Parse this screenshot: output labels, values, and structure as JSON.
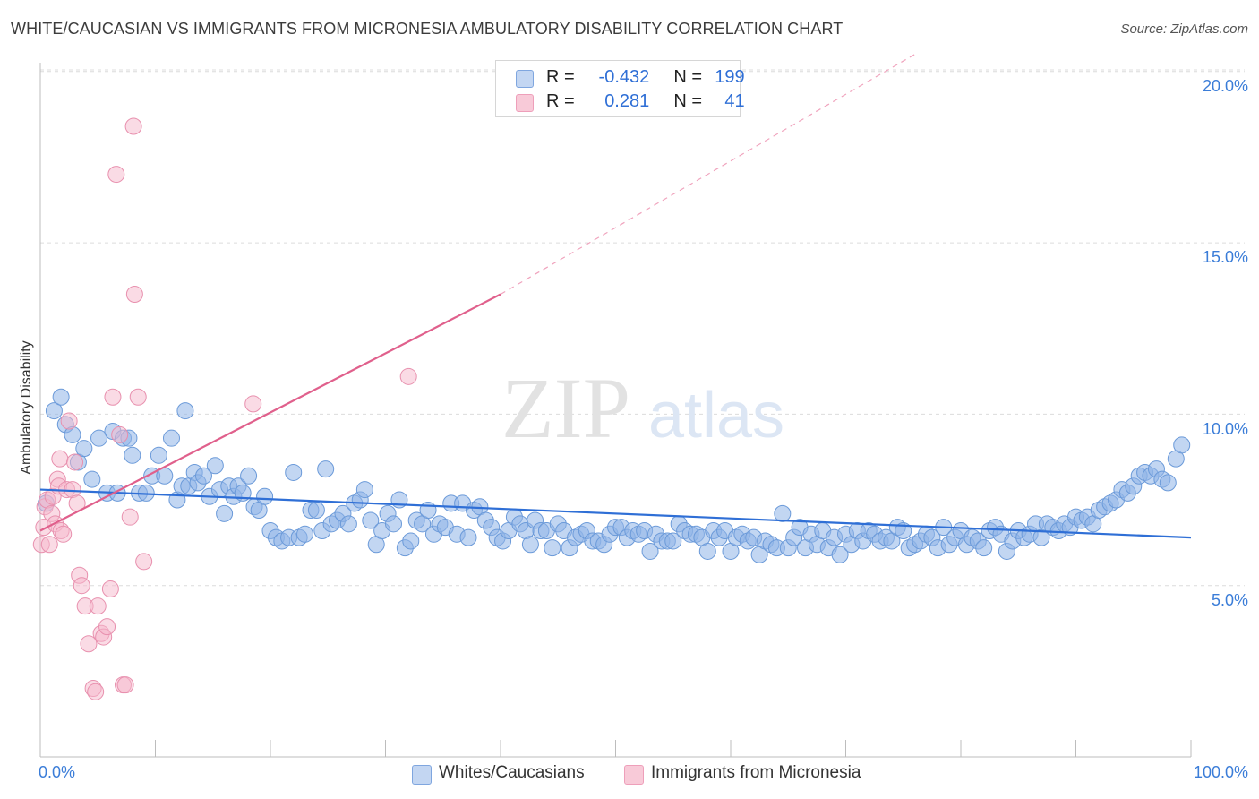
{
  "chart_data": {
    "type": "scatter",
    "title": "WHITE/CAUCASIAN VS IMMIGRANTS FROM MICRONESIA AMBULATORY DISABILITY CORRELATION CHART",
    "source": "Source: ZipAtlas.com",
    "ylabel": "Ambulatory Disability",
    "xlabel": "",
    "xlim": [
      0,
      100
    ],
    "ylim": [
      0,
      20.5
    ],
    "x_tick_labels": [
      "0.0%",
      "100.0%"
    ],
    "y_ticks": [
      5,
      10,
      15,
      20
    ],
    "y_tick_labels": [
      "5.0%",
      "10.0%",
      "15.0%",
      "20.0%"
    ],
    "watermark": {
      "part1": "ZIP",
      "part2": "atlas"
    },
    "legend": {
      "position": "top-center",
      "entries": [
        {
          "r_label": "R =",
          "r_value": "-0.432",
          "n_label": "N =",
          "n_value": "199"
        },
        {
          "r_label": "R =",
          "r_value": "0.281",
          "n_label": "N =",
          "n_value": "41"
        }
      ]
    },
    "series": [
      {
        "name": "Whites/Caucasians",
        "color": "#8fb4e8",
        "edge": "#6b9ad9",
        "trend": {
          "x": [
            0,
            100
          ],
          "y": [
            7.8,
            6.4
          ],
          "color": "#2f6fd6"
        },
        "points": [
          [
            0.5,
            7.4
          ],
          [
            1.2,
            10.1
          ],
          [
            1.8,
            10.5
          ],
          [
            2.2,
            9.7
          ],
          [
            2.8,
            9.4
          ],
          [
            3.3,
            8.6
          ],
          [
            3.8,
            9.0
          ],
          [
            4.5,
            8.1
          ],
          [
            5.1,
            9.3
          ],
          [
            5.8,
            7.7
          ],
          [
            6.3,
            9.5
          ],
          [
            6.7,
            7.7
          ],
          [
            7.2,
            9.3
          ],
          [
            7.7,
            9.3
          ],
          [
            8.0,
            8.8
          ],
          [
            8.6,
            7.7
          ],
          [
            9.2,
            7.7
          ],
          [
            9.7,
            8.2
          ],
          [
            10.3,
            8.8
          ],
          [
            10.8,
            8.2
          ],
          [
            11.4,
            9.3
          ],
          [
            11.9,
            7.5
          ],
          [
            12.3,
            7.9
          ],
          [
            12.6,
            10.1
          ],
          [
            12.9,
            7.9
          ],
          [
            13.4,
            8.3
          ],
          [
            13.7,
            8.0
          ],
          [
            14.2,
            8.2
          ],
          [
            14.7,
            7.6
          ],
          [
            15.2,
            8.5
          ],
          [
            15.6,
            7.8
          ],
          [
            16.0,
            7.1
          ],
          [
            16.4,
            7.9
          ],
          [
            16.8,
            7.6
          ],
          [
            17.2,
            7.9
          ],
          [
            17.6,
            7.7
          ],
          [
            18.1,
            8.2
          ],
          [
            18.6,
            7.3
          ],
          [
            19.0,
            7.2
          ],
          [
            19.5,
            7.6
          ],
          [
            20.0,
            6.6
          ],
          [
            20.5,
            6.4
          ],
          [
            21.0,
            6.3
          ],
          [
            21.6,
            6.4
          ],
          [
            22.0,
            8.3
          ],
          [
            22.5,
            6.4
          ],
          [
            23.0,
            6.5
          ],
          [
            23.5,
            7.2
          ],
          [
            24.0,
            7.2
          ],
          [
            24.5,
            6.6
          ],
          [
            24.8,
            8.4
          ],
          [
            25.3,
            6.8
          ],
          [
            25.8,
            6.9
          ],
          [
            26.3,
            7.1
          ],
          [
            26.8,
            6.8
          ],
          [
            27.3,
            7.4
          ],
          [
            27.8,
            7.5
          ],
          [
            28.2,
            7.8
          ],
          [
            28.7,
            6.9
          ],
          [
            29.2,
            6.2
          ],
          [
            29.7,
            6.6
          ],
          [
            30.2,
            7.1
          ],
          [
            30.7,
            6.8
          ],
          [
            31.2,
            7.5
          ],
          [
            31.7,
            6.1
          ],
          [
            32.2,
            6.3
          ],
          [
            32.7,
            6.9
          ],
          [
            33.2,
            6.8
          ],
          [
            33.7,
            7.2
          ],
          [
            34.2,
            6.5
          ],
          [
            34.7,
            6.8
          ],
          [
            35.2,
            6.7
          ],
          [
            35.7,
            7.4
          ],
          [
            36.2,
            6.5
          ],
          [
            36.7,
            7.4
          ],
          [
            37.2,
            6.4
          ],
          [
            37.7,
            7.2
          ],
          [
            38.2,
            7.3
          ],
          [
            38.7,
            6.9
          ],
          [
            39.2,
            6.7
          ],
          [
            39.7,
            6.4
          ],
          [
            40.2,
            6.3
          ],
          [
            40.7,
            6.6
          ],
          [
            41.2,
            7.0
          ],
          [
            41.7,
            6.8
          ],
          [
            42.2,
            6.6
          ],
          [
            42.6,
            6.2
          ],
          [
            43.0,
            6.9
          ],
          [
            43.5,
            6.6
          ],
          [
            44.0,
            6.6
          ],
          [
            44.5,
            6.1
          ],
          [
            45.0,
            6.8
          ],
          [
            45.5,
            6.6
          ],
          [
            46.0,
            6.1
          ],
          [
            46.5,
            6.4
          ],
          [
            47.0,
            6.5
          ],
          [
            47.5,
            6.6
          ],
          [
            48.0,
            6.3
          ],
          [
            48.5,
            6.3
          ],
          [
            49.0,
            6.2
          ],
          [
            49.5,
            6.5
          ],
          [
            50.0,
            6.7
          ],
          [
            50.5,
            6.7
          ],
          [
            51.0,
            6.4
          ],
          [
            51.5,
            6.6
          ],
          [
            52.0,
            6.5
          ],
          [
            52.5,
            6.6
          ],
          [
            53.0,
            6.0
          ],
          [
            53.5,
            6.5
          ],
          [
            54.0,
            6.3
          ],
          [
            54.5,
            6.3
          ],
          [
            55.0,
            6.3
          ],
          [
            55.5,
            6.8
          ],
          [
            56.0,
            6.6
          ],
          [
            56.5,
            6.5
          ],
          [
            57.0,
            6.5
          ],
          [
            57.5,
            6.4
          ],
          [
            58.0,
            6.0
          ],
          [
            58.5,
            6.6
          ],
          [
            59.0,
            6.4
          ],
          [
            59.5,
            6.6
          ],
          [
            60.0,
            6.0
          ],
          [
            60.5,
            6.4
          ],
          [
            61.0,
            6.5
          ],
          [
            61.5,
            6.3
          ],
          [
            62.0,
            6.4
          ],
          [
            62.5,
            5.9
          ],
          [
            63.0,
            6.3
          ],
          [
            63.5,
            6.2
          ],
          [
            64.0,
            6.1
          ],
          [
            64.5,
            7.1
          ],
          [
            65.0,
            6.1
          ],
          [
            65.5,
            6.4
          ],
          [
            66.0,
            6.7
          ],
          [
            66.5,
            6.1
          ],
          [
            67.0,
            6.5
          ],
          [
            67.5,
            6.2
          ],
          [
            68.0,
            6.6
          ],
          [
            68.5,
            6.1
          ],
          [
            69.0,
            6.4
          ],
          [
            69.5,
            5.9
          ],
          [
            70.0,
            6.5
          ],
          [
            70.5,
            6.2
          ],
          [
            71.0,
            6.6
          ],
          [
            71.5,
            6.3
          ],
          [
            72.0,
            6.6
          ],
          [
            72.5,
            6.5
          ],
          [
            73.0,
            6.3
          ],
          [
            73.5,
            6.4
          ],
          [
            74.0,
            6.3
          ],
          [
            74.5,
            6.7
          ],
          [
            75.0,
            6.6
          ],
          [
            75.5,
            6.1
          ],
          [
            76.0,
            6.2
          ],
          [
            76.5,
            6.3
          ],
          [
            77.0,
            6.5
          ],
          [
            77.5,
            6.4
          ],
          [
            78.0,
            6.1
          ],
          [
            78.5,
            6.7
          ],
          [
            79.0,
            6.2
          ],
          [
            79.5,
            6.4
          ],
          [
            80.0,
            6.6
          ],
          [
            80.5,
            6.2
          ],
          [
            81.0,
            6.4
          ],
          [
            81.5,
            6.3
          ],
          [
            82.0,
            6.1
          ],
          [
            82.5,
            6.6
          ],
          [
            83.0,
            6.7
          ],
          [
            83.5,
            6.5
          ],
          [
            84.0,
            6.0
          ],
          [
            84.5,
            6.3
          ],
          [
            85.0,
            6.6
          ],
          [
            85.5,
            6.4
          ],
          [
            86.0,
            6.5
          ],
          [
            86.5,
            6.8
          ],
          [
            87.0,
            6.4
          ],
          [
            87.5,
            6.8
          ],
          [
            88.0,
            6.7
          ],
          [
            88.5,
            6.6
          ],
          [
            89.0,
            6.8
          ],
          [
            89.5,
            6.7
          ],
          [
            90.0,
            7.0
          ],
          [
            90.5,
            6.9
          ],
          [
            91.0,
            7.0
          ],
          [
            91.5,
            6.8
          ],
          [
            92.0,
            7.2
          ],
          [
            92.5,
            7.3
          ],
          [
            93.0,
            7.4
          ],
          [
            93.5,
            7.5
          ],
          [
            94.0,
            7.8
          ],
          [
            94.5,
            7.7
          ],
          [
            95.0,
            7.9
          ],
          [
            95.5,
            8.2
          ],
          [
            96.0,
            8.3
          ],
          [
            96.5,
            8.2
          ],
          [
            97.0,
            8.4
          ],
          [
            97.5,
            8.1
          ],
          [
            98.0,
            8.0
          ],
          [
            98.7,
            8.7
          ],
          [
            99.2,
            9.1
          ]
        ]
      },
      {
        "name": "Immigrants from Micronesia",
        "color": "#f5b8cb",
        "edge": "#e890ae",
        "trend": {
          "x": [
            0,
            40
          ],
          "y": [
            6.6,
            13.5
          ],
          "dashed_to_x": 76,
          "dashed_to_y": 20.5,
          "color": "#e0608c"
        },
        "points": [
          [
            0.1,
            6.2
          ],
          [
            0.3,
            6.7
          ],
          [
            0.4,
            7.3
          ],
          [
            0.6,
            7.5
          ],
          [
            0.8,
            6.2
          ],
          [
            1.0,
            7.1
          ],
          [
            1.1,
            7.6
          ],
          [
            1.3,
            6.8
          ],
          [
            1.5,
            8.1
          ],
          [
            1.6,
            7.9
          ],
          [
            1.7,
            8.7
          ],
          [
            1.8,
            6.6
          ],
          [
            2.0,
            6.5
          ],
          [
            2.3,
            7.8
          ],
          [
            2.5,
            9.8
          ],
          [
            2.8,
            7.8
          ],
          [
            3.0,
            8.6
          ],
          [
            3.2,
            7.4
          ],
          [
            3.4,
            5.3
          ],
          [
            3.6,
            5.0
          ],
          [
            3.9,
            4.4
          ],
          [
            4.2,
            3.3
          ],
          [
            4.6,
            2.0
          ],
          [
            4.8,
            1.9
          ],
          [
            5.0,
            4.4
          ],
          [
            5.3,
            3.6
          ],
          [
            5.5,
            3.5
          ],
          [
            5.8,
            3.8
          ],
          [
            6.1,
            4.9
          ],
          [
            6.3,
            10.5
          ],
          [
            6.6,
            17.0
          ],
          [
            6.9,
            9.4
          ],
          [
            7.2,
            2.1
          ],
          [
            7.4,
            2.1
          ],
          [
            7.8,
            7.0
          ],
          [
            8.1,
            18.4
          ],
          [
            8.2,
            13.5
          ],
          [
            8.5,
            10.5
          ],
          [
            9.0,
            5.7
          ],
          [
            18.5,
            10.3
          ],
          [
            32.0,
            11.1
          ]
        ]
      }
    ]
  }
}
